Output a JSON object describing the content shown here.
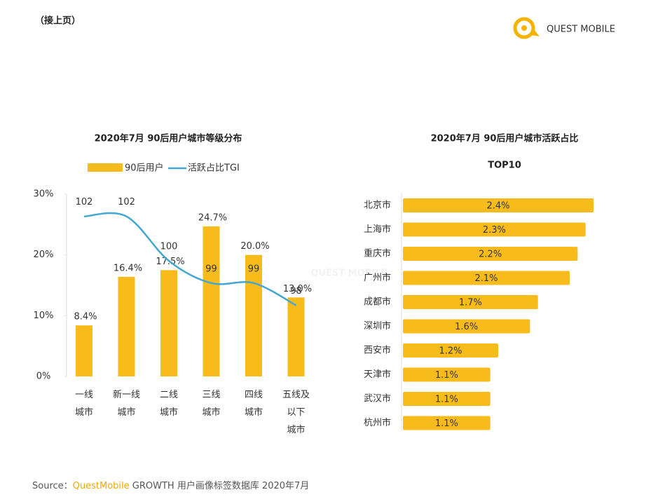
{
  "header": {
    "note": "（接上页）",
    "logo": "QUEST MOBILE"
  },
  "watermark": "QUEST MOBILE",
  "chart_data": [
    {
      "type": "bar-line",
      "title": "2020年7月 90后用户城市等级分布",
      "categories": [
        "一线城市",
        "新一线城市",
        "二线城市",
        "三线城市",
        "四线城市",
        "五线及以下城市"
      ],
      "series": [
        {
          "name": "90后用户",
          "type": "bar",
          "color": "#f8bb1c",
          "values": [
            8.4,
            16.4,
            17.5,
            24.7,
            20.0,
            13.0
          ],
          "value_labels": [
            "8.4%",
            "16.4%",
            "17.5%",
            "24.7%",
            "20.0%",
            "13.0%"
          ]
        },
        {
          "name": "活跃占比TGI",
          "type": "line",
          "color": "#43a7d3",
          "axis": "y2",
          "values": [
            102,
            102,
            100,
            99,
            99,
            98
          ]
        }
      ],
      "ylim": [
        0,
        30
      ],
      "yticks": [
        {
          "value": 0,
          "label": "0%"
        },
        {
          "value": 10,
          "label": "10%"
        },
        {
          "value": 20,
          "label": "20%"
        },
        {
          "value": 30,
          "label": "30%"
        }
      ],
      "y2lim": [
        94.8,
        103
      ],
      "legend": "top"
    },
    {
      "type": "hbar",
      "title": "2020年7月 90后用户城市活跃占比",
      "subtitle": "TOP10",
      "categories": [
        "北京市",
        "上海市",
        "重庆市",
        "广州市",
        "成都市",
        "深圳市",
        "西安市",
        "天津市",
        "武汉市",
        "杭州市"
      ],
      "values": [
        2.4,
        2.3,
        2.2,
        2.1,
        1.7,
        1.6,
        1.2,
        1.1,
        1.1,
        1.1
      ],
      "value_labels": [
        "2.4%",
        "2.3%",
        "2.2%",
        "2.1%",
        "1.7%",
        "1.6%",
        "1.2%",
        "1.1%",
        "1.1%",
        "1.1%"
      ],
      "color": "#f8bb1c"
    }
  ],
  "source": {
    "label": "Source：",
    "brand": "QuestMobile",
    "text": "GROWTH 用户画像标签数据库 2020年7月"
  }
}
